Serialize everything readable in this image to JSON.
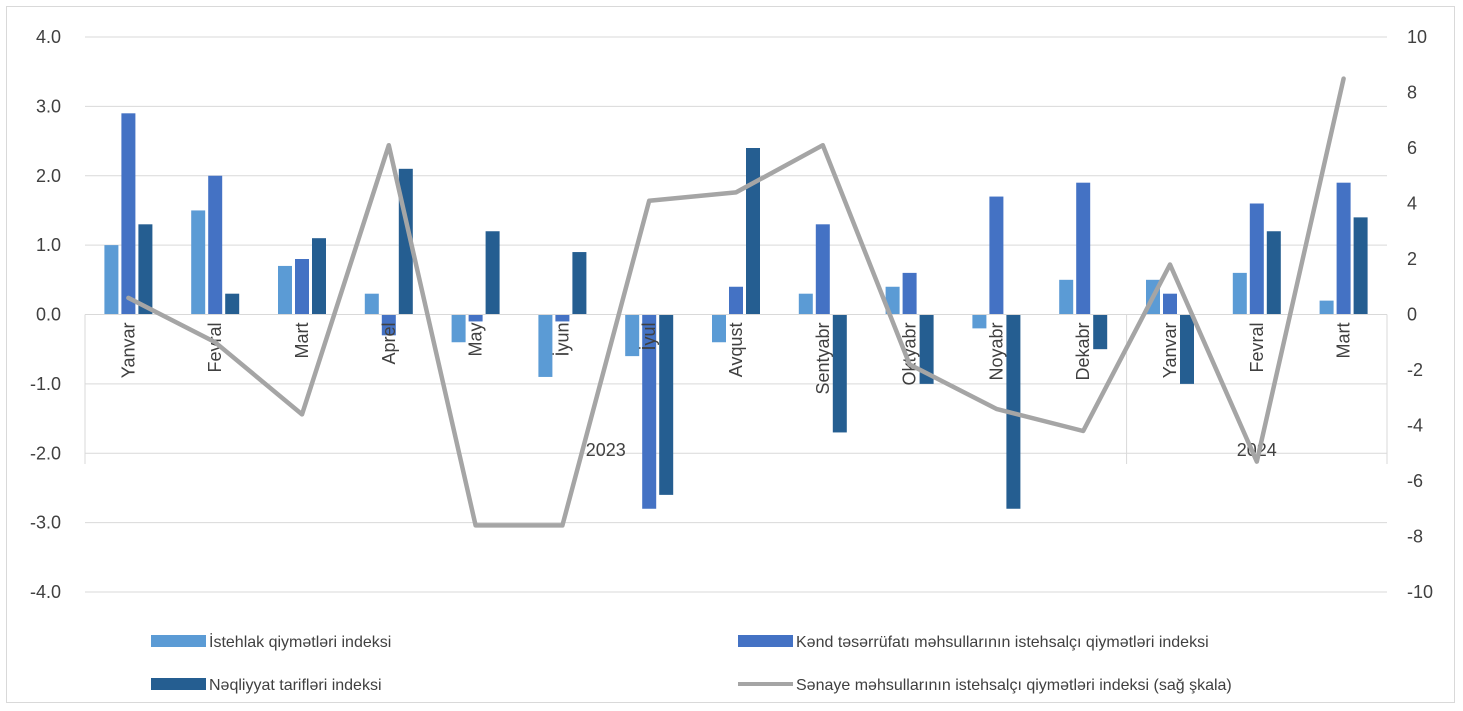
{
  "chart_data": {
    "type": "bar",
    "categories": [
      "Yanvar",
      "Fevral",
      "Mart",
      "Aprel",
      "May",
      "İyun",
      "İyul",
      "Avqust",
      "Sentyabr",
      "Oktyabr",
      "Noyabr",
      "Dekabr",
      "Yanvar",
      "Fevral",
      "Mart"
    ],
    "years": [
      {
        "label": "2023",
        "from": 0,
        "to": 11
      },
      {
        "label": "2024",
        "from": 12,
        "to": 14
      }
    ],
    "series": [
      {
        "name": "İstehlak qiymətləri indeksi",
        "axis": "left",
        "type": "bar",
        "color": "#5b9bd5",
        "values": [
          1.0,
          1.5,
          0.7,
          0.3,
          -0.4,
          -0.9,
          -0.6,
          -0.4,
          0.3,
          0.4,
          -0.2,
          0.5,
          0.5,
          0.6,
          0.2
        ]
      },
      {
        "name": "Kənd təsərrüfatı məhsullarının istehsalçı qiymətləri indeksi",
        "axis": "left",
        "type": "bar",
        "color": "#4472c4",
        "values": [
          2.9,
          2.0,
          0.8,
          -0.3,
          -0.1,
          -0.1,
          -2.8,
          0.4,
          1.3,
          0.6,
          1.7,
          1.9,
          0.3,
          1.6,
          1.9
        ]
      },
      {
        "name": "Nəqliyyat tarifləri indeksi",
        "axis": "left",
        "type": "bar",
        "color": "#255e91",
        "values": [
          1.3,
          0.3,
          1.1,
          2.1,
          1.2,
          0.9,
          -2.6,
          2.4,
          -1.7,
          -1.0,
          -2.8,
          -0.5,
          -1.0,
          1.2,
          1.4
        ]
      },
      {
        "name": "Sənaye məhsullarının istehsalçı qiymətləri indeksi (sağ şkala)",
        "axis": "right",
        "type": "line",
        "color": "#a5a5a5",
        "values": [
          0.6,
          -1.0,
          -3.6,
          6.1,
          -7.6,
          -7.6,
          4.1,
          4.4,
          6.1,
          -1.8,
          -3.4,
          -4.2,
          1.8,
          -5.3,
          8.5
        ]
      }
    ],
    "yticks_left": [
      "4.0",
      "3.0",
      "2.0",
      "1.0",
      "0.0",
      "-1.0",
      "-2.0",
      "-3.0",
      "-4.0"
    ],
    "yticks_right": [
      "10",
      "8",
      "6",
      "4",
      "2",
      "0",
      "-2",
      "-4",
      "-6",
      "-8",
      "-10"
    ],
    "ylim_left": [
      -4,
      4
    ],
    "ylim_right": [
      -10,
      10
    ],
    "grid": true,
    "legend_position": "bottom"
  }
}
